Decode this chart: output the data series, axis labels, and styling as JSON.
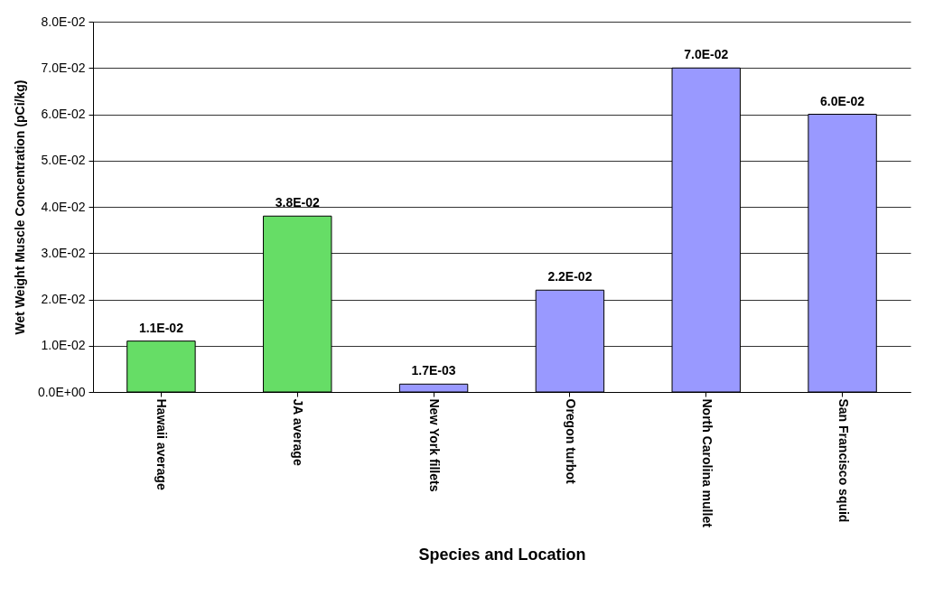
{
  "chart_data": {
    "type": "bar",
    "xlabel": "Species and Location",
    "ylabel": "Wet Weight Muscle Concentration (pCi/kg)",
    "categories": [
      "Hawaii average",
      "JA average",
      "New York fillets",
      "Oregon turbot",
      "North Carolina mullet",
      "San Francisco squid"
    ],
    "values": [
      0.011,
      0.038,
      0.0017,
      0.022,
      0.07,
      0.06
    ],
    "colors": [
      "#66dd66",
      "#66dd66",
      "#9999ff",
      "#9999ff",
      "#9999ff",
      "#9999ff"
    ],
    "value_labels": [
      "1.1E-02",
      "3.8E-02",
      "1.7E-03",
      "2.2E-02",
      "7.0E-02",
      "6.0E-02"
    ],
    "ylim": [
      0,
      0.08
    ],
    "yticks": [
      {
        "value": 0,
        "label": "0.0E+00"
      },
      {
        "value": 0.01,
        "label": "1.0E-02"
      },
      {
        "value": 0.02,
        "label": "2.0E-02"
      },
      {
        "value": 0.03,
        "label": "3.0E-02"
      },
      {
        "value": 0.04,
        "label": "4.0E-02"
      },
      {
        "value": 0.05,
        "label": "5.0E-02"
      },
      {
        "value": 0.06,
        "label": "6.0E-02"
      },
      {
        "value": 0.07,
        "label": "7.0E-02"
      },
      {
        "value": 0.08,
        "label": "8.0E-02"
      }
    ],
    "grid": "y",
    "legend": false
  }
}
